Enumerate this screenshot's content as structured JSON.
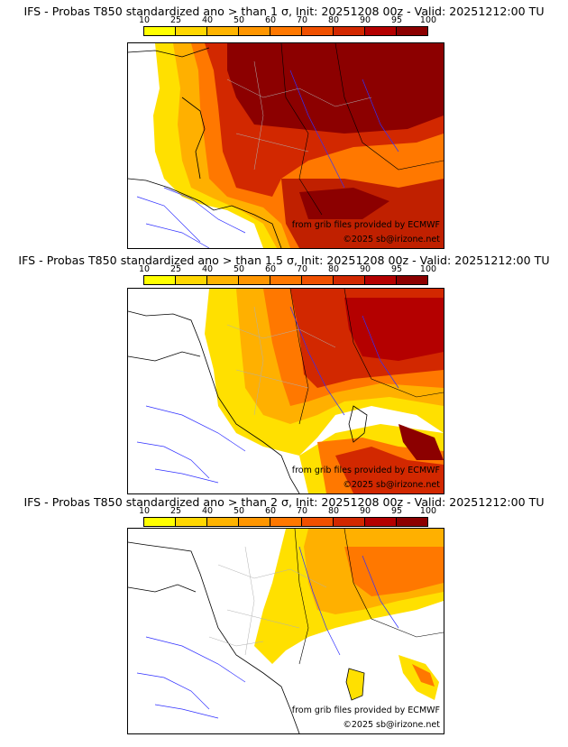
{
  "scale": {
    "ticks": [
      "10",
      "25",
      "40",
      "50",
      "60",
      "70",
      "80",
      "90",
      "95",
      "100"
    ],
    "colors": [
      "#ffff00",
      "#ffd700",
      "#ffb400",
      "#ff9600",
      "#ff7800",
      "#f05000",
      "#d22800",
      "#b40000",
      "#8c0000"
    ]
  },
  "panels": [
    {
      "title": "IFS - Probas T850  standardized ano > than 1 σ, Init: 20251208 00z - Valid: 20251212:00 TU",
      "credit_grib": "from grib files provided by ECMWF",
      "credit_copyright": "©2025 sb@irizone.net"
    },
    {
      "title": "IFS - Probas T850  standardized ano > than 1.5 σ, Init: 20251208 00z - Valid: 20251212:00 TU",
      "credit_grib": "from grib files provided by ECMWF",
      "credit_copyright": "©2025 sb@irizone.net"
    },
    {
      "title": "IFS - Probas T850  standardized ano > than 2 σ, Init: 20251208 00z - Valid: 20251212:00 TU",
      "credit_grib": "from grib files provided by ECMWF",
      "credit_copyright": "©2025 sb@irizone.net"
    }
  ]
}
